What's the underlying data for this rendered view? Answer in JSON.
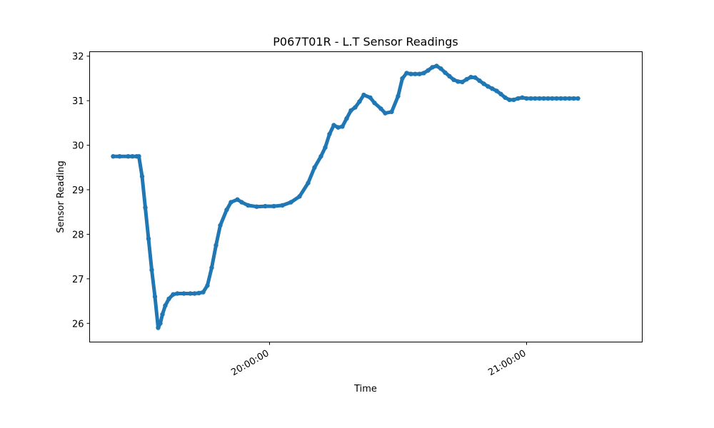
{
  "chart_data": {
    "type": "scatter",
    "title": "P067T01R - L.T Sensor Readings",
    "xlabel": "Time",
    "ylabel": "Sensor Reading",
    "xlim": [
      "19:18:00",
      "21:27:00"
    ],
    "ylim": [
      25.58,
      32.1
    ],
    "yticks": [
      26,
      27,
      28,
      29,
      30,
      31,
      32
    ],
    "xticks": [
      {
        "value": "20:00:00",
        "label": "20:00:00"
      },
      {
        "value": "21:00:00",
        "label": "21:00:00"
      }
    ],
    "grid": false,
    "color": "#1f77b4",
    "series": [
      {
        "x": [
          "19:23:30",
          "19:25:00",
          "19:27:00",
          "19:28:00",
          "19:29:00",
          "19:29:30",
          "19:30:15",
          "19:31:00",
          "19:31:45",
          "19:32:30",
          "19:33:15",
          "19:34:00",
          "19:34:30",
          "19:35:00",
          "19:35:40",
          "19:36:30",
          "19:37:30",
          "19:38:30",
          "19:40:00",
          "19:41:30",
          "19:42:30",
          "19:43:30",
          "19:44:30",
          "19:45:30",
          "19:46:30",
          "19:47:30",
          "19:48:30",
          "19:50:00",
          "19:51:00",
          "19:52:30",
          "19:53:30",
          "19:55:00",
          "19:57:00",
          "19:59:00",
          "20:01:00",
          "20:03:00",
          "20:05:00",
          "20:07:00",
          "20:09:00",
          "20:10:30",
          "20:12:00",
          "20:13:00",
          "20:14:00",
          "20:15:00",
          "20:16:00",
          "20:17:00",
          "20:18:00",
          "20:19:00",
          "20:20:00",
          "20:21:00",
          "20:22:00",
          "20:23:30",
          "20:24:30",
          "20:26:00",
          "20:27:00",
          "20:28:30",
          "20:30:00",
          "20:31:00",
          "20:32:00",
          "20:33:00",
          "20:34:00",
          "20:35:00",
          "20:36:00",
          "20:37:00",
          "20:38:00",
          "20:39:00",
          "20:40:00",
          "20:41:00",
          "20:42:00",
          "20:43:00",
          "20:44:00",
          "20:45:00",
          "20:46:00",
          "20:47:00",
          "20:48:00",
          "20:49:00",
          "20:50:00",
          "20:51:00",
          "20:52:00",
          "20:53:00",
          "20:54:00",
          "20:55:00",
          "20:56:00",
          "20:57:00",
          "20:58:00",
          "20:59:00",
          "21:00:00",
          "21:01:00",
          "21:02:00",
          "21:03:00",
          "21:04:00",
          "21:05:00",
          "21:06:00",
          "21:07:00",
          "21:08:00",
          "21:09:00",
          "21:10:00",
          "21:11:00",
          "21:12:00"
        ],
        "y": [
          29.75,
          29.75,
          29.75,
          29.75,
          29.75,
          29.75,
          29.3,
          28.6,
          27.9,
          27.2,
          26.6,
          25.9,
          26.0,
          26.2,
          26.4,
          26.55,
          26.65,
          26.67,
          26.67,
          26.67,
          26.67,
          26.68,
          26.7,
          26.85,
          27.25,
          27.75,
          28.2,
          28.55,
          28.72,
          28.78,
          28.72,
          28.65,
          28.62,
          28.63,
          28.63,
          28.65,
          28.72,
          28.85,
          29.15,
          29.5,
          29.75,
          29.95,
          30.25,
          30.45,
          30.4,
          30.42,
          30.6,
          30.78,
          30.85,
          30.98,
          31.13,
          31.07,
          30.95,
          30.82,
          30.72,
          30.75,
          31.1,
          31.5,
          31.62,
          31.6,
          31.6,
          31.6,
          31.62,
          31.68,
          31.75,
          31.78,
          31.72,
          31.63,
          31.55,
          31.47,
          31.43,
          31.42,
          31.48,
          31.53,
          31.52,
          31.45,
          31.38,
          31.32,
          31.27,
          31.22,
          31.15,
          31.07,
          31.02,
          31.02,
          31.05,
          31.07,
          31.05,
          31.05,
          31.05,
          31.05,
          31.05,
          31.05,
          31.05,
          31.05,
          31.05,
          31.05,
          31.05,
          31.05,
          31.05
        ]
      }
    ]
  }
}
